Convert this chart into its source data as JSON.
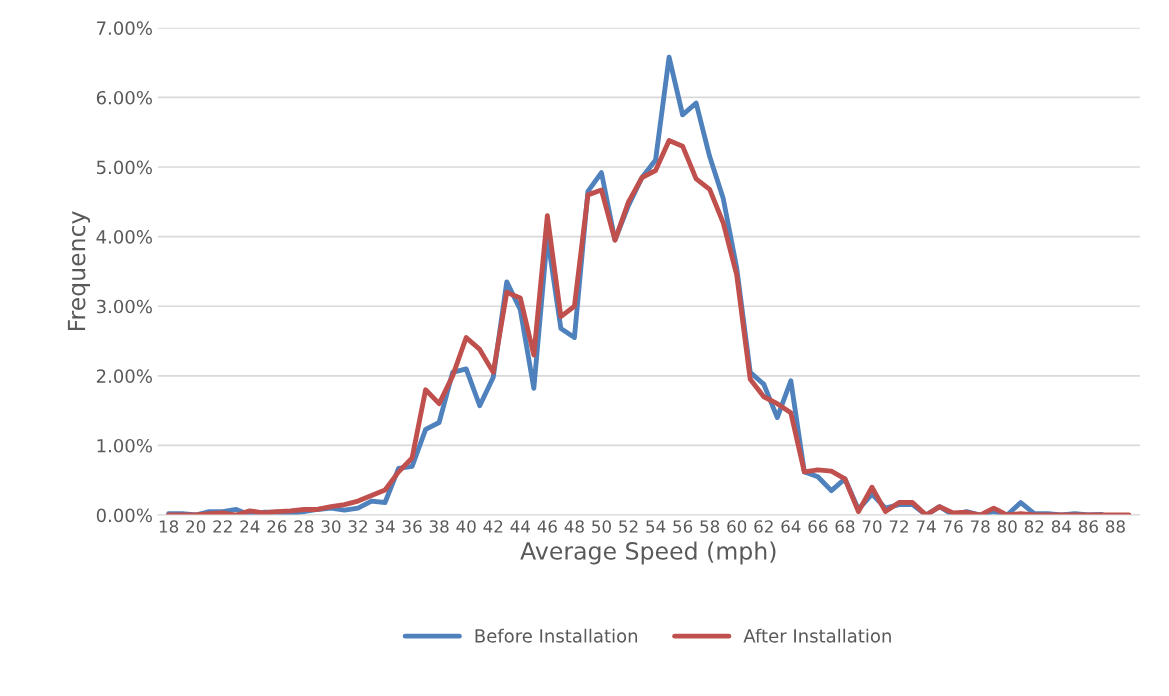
{
  "chart_data": {
    "type": "line",
    "xlabel": "Average Speed (mph)",
    "ylabel": "Frequency",
    "categories": [
      "18",
      null,
      "20",
      null,
      "22",
      null,
      "24",
      null,
      "26",
      null,
      "28",
      null,
      "30",
      null,
      "32",
      null,
      "34",
      null,
      "36",
      null,
      "38",
      null,
      "40",
      null,
      "42",
      null,
      "44",
      null,
      "46",
      null,
      "48",
      null,
      "50",
      null,
      "52",
      null,
      "54",
      null,
      "56",
      null,
      "58",
      null,
      "60",
      null,
      "62",
      null,
      "64",
      null,
      "66",
      null,
      "68",
      null,
      "70",
      null,
      "72",
      null,
      "74",
      null,
      "76",
      null,
      "78",
      null,
      "80",
      null,
      "82",
      null,
      "84",
      null,
      "86",
      null,
      "88",
      null
    ],
    "series": [
      {
        "name": "Before Installation",
        "color": "#4f81bd",
        "values": [
          0.02,
          0.02,
          0.0,
          0.05,
          0.05,
          0.08,
          0.0,
          0.04,
          0.04,
          0.02,
          0.05,
          0.08,
          0.1,
          0.07,
          0.1,
          0.2,
          0.18,
          0.67,
          0.7,
          1.23,
          1.33,
          2.05,
          2.1,
          1.57,
          1.98,
          3.35,
          2.95,
          1.82,
          4.0,
          2.68,
          2.55,
          4.65,
          4.92,
          3.95,
          4.45,
          4.85,
          5.1,
          6.58,
          5.75,
          5.92,
          5.15,
          4.55,
          3.55,
          2.05,
          1.88,
          1.4,
          1.93,
          0.62,
          0.55,
          0.35,
          0.52,
          0.08,
          0.3,
          0.1,
          0.15,
          0.15,
          0.0,
          0.12,
          0.0,
          0.05,
          0.0,
          0.05,
          0.0,
          0.18,
          0.02,
          0.02,
          0.0,
          0.02,
          0.0,
          0.01,
          null,
          null
        ]
      },
      {
        "name": "After Installation",
        "color": "#c0504d",
        "values": [
          0.0,
          0.0,
          0.0,
          0.02,
          0.03,
          0.0,
          0.06,
          0.03,
          0.05,
          0.06,
          0.08,
          0.08,
          0.12,
          0.15,
          0.2,
          0.28,
          0.36,
          0.62,
          0.82,
          1.8,
          1.6,
          2.0,
          2.55,
          2.38,
          2.05,
          3.2,
          3.12,
          2.3,
          4.3,
          2.85,
          3.0,
          4.6,
          4.67,
          3.95,
          4.5,
          4.85,
          4.95,
          5.38,
          5.3,
          4.83,
          4.68,
          4.2,
          3.45,
          1.95,
          1.7,
          1.6,
          1.47,
          0.62,
          0.65,
          0.63,
          0.52,
          0.05,
          0.4,
          0.05,
          0.18,
          0.18,
          0.0,
          0.12,
          0.03,
          0.04,
          0.0,
          0.1,
          0.0,
          0.02,
          0.0,
          0.0,
          0.0,
          0.0,
          0.0,
          0.0,
          0.0,
          0.0
        ]
      }
    ],
    "ylim": [
      0,
      7
    ],
    "yticks": [
      {
        "value": 0,
        "label": "0.00%"
      },
      {
        "value": 1,
        "label": "1.00%"
      },
      {
        "value": 2,
        "label": "2.00%"
      },
      {
        "value": 3,
        "label": "3.00%"
      },
      {
        "value": 4,
        "label": "4.00%"
      },
      {
        "value": 5,
        "label": "5.00%"
      },
      {
        "value": 6,
        "label": "6.00%"
      },
      {
        "value": 7,
        "label": "7.00%"
      }
    ],
    "grid": "y",
    "legend": "bottom",
    "marker": "none",
    "line_style": "solid"
  }
}
